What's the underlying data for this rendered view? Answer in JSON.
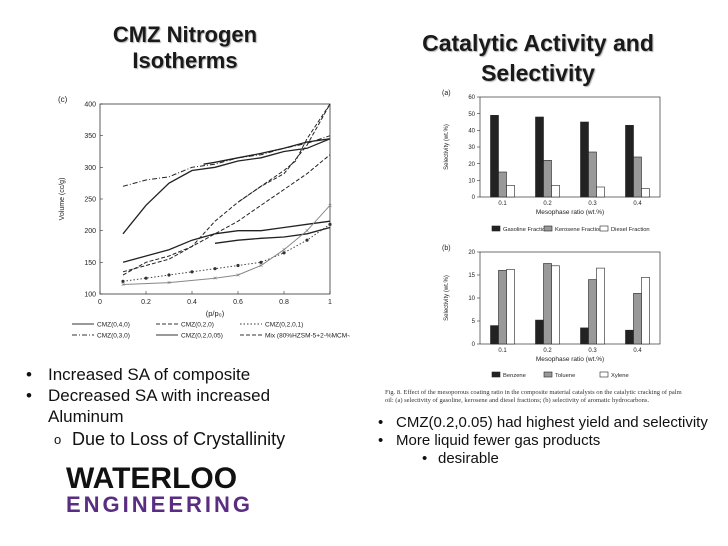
{
  "slide": {
    "left_title": [
      "CMZ Nitrogen",
      "Isotherms"
    ],
    "right_title": [
      "Catalytic Activity and",
      "Selectivity"
    ],
    "left_bullets": [
      "Increased SA of composite",
      "Decreased SA with increased Aluminum"
    ],
    "left_sub_bullet": "Due to Loss of Crystallinity",
    "right_bullets": [
      "CMZ(0.2,0.05) had highest yield and selectivity",
      "More liquid fewer gas products"
    ],
    "right_sub_bullet": "desirable",
    "caption": "Fig. 8. Effect of the mesoporous coating ratio in the composite material catalysts on the catalytic cracking of palm oil: (a) selectivity of gasoline, kerosene and diesel fractions; (b) selectivity of aromatic hydrocarbons.",
    "logo_line1": "WATERLOO",
    "logo_line2": "ENGINEERING",
    "colors": {
      "purple": "#5a2d82"
    }
  },
  "chart_data": [
    {
      "type": "line",
      "panel": "(c)",
      "xlabel": "(p/p₀)",
      "ylabel": "Volume (cc/g)",
      "xlim": [
        0,
        1
      ],
      "ylim": [
        100,
        400
      ],
      "xticks": [
        "0",
        "0.2",
        "0.4",
        "0.6",
        "0.8",
        "1"
      ],
      "yticks": [
        "100",
        "150",
        "200",
        "250",
        "300",
        "350",
        "400"
      ],
      "legend": [
        "CMZ(0,4,0)",
        "CMZ(0,2,0)",
        "CMZ(0,2,0,1)",
        "CMZ(0,3,0)",
        "CMZ(0,2,0,05)",
        "Mix (80%HZSM-5+2-%MCM-41)"
      ],
      "series": [
        {
          "name": "CMZ(0,4,0)",
          "style": "solid",
          "color": "#222222",
          "x": [
            0.1,
            0.2,
            0.3,
            0.4,
            0.5,
            0.6,
            0.7,
            0.8,
            0.9,
            1.0
          ],
          "y": [
            195,
            240,
            275,
            295,
            300,
            310,
            315,
            325,
            330,
            345
          ]
        },
        {
          "name": "CMZ(0,4,0)",
          "style": "solid",
          "color": "#222222",
          "x": [
            1.0,
            0.9,
            0.8,
            0.7,
            0.6,
            0.5,
            0.45
          ],
          "y": [
            345,
            340,
            330,
            322,
            315,
            308,
            305
          ]
        },
        {
          "name": "CMZ(0,3,0)",
          "style": "dashdot",
          "color": "#222222",
          "x": [
            0.1,
            0.2,
            0.3,
            0.4,
            0.5,
            0.6,
            0.7,
            0.8,
            0.9,
            1.0
          ],
          "y": [
            270,
            280,
            285,
            300,
            305,
            315,
            320,
            330,
            338,
            350
          ]
        },
        {
          "name": "CMZ(0,2,0)",
          "style": "dashed",
          "color": "#222222",
          "x": [
            0.1,
            0.2,
            0.3,
            0.4,
            0.5,
            0.6,
            0.7,
            0.8,
            0.9,
            1.0
          ],
          "y": [
            135,
            145,
            155,
            175,
            215,
            245,
            270,
            290,
            335,
            400
          ]
        },
        {
          "name": "CMZ(0,2,0)",
          "style": "dashed",
          "color": "#222222",
          "x": [
            1.0,
            0.9,
            0.85,
            0.8,
            0.7,
            0.6
          ],
          "y": [
            400,
            345,
            310,
            295,
            270,
            245
          ]
        },
        {
          "name": "Mix (80%HZSM-5+2-%MCM-41)",
          "style": "dashed",
          "color": "#222222",
          "x": [
            0.1,
            0.2,
            0.3,
            0.4,
            0.5,
            0.6,
            0.7,
            0.8,
            0.9,
            1.0
          ],
          "y": [
            130,
            150,
            160,
            175,
            195,
            215,
            240,
            265,
            290,
            320
          ]
        },
        {
          "name": "CMZ(0,2,0,05)",
          "style": "solid",
          "color": "#222222",
          "x": [
            0.1,
            0.2,
            0.3,
            0.4,
            0.5,
            0.6,
            0.7,
            0.8,
            0.9,
            1.0
          ],
          "y": [
            150,
            160,
            170,
            185,
            195,
            200,
            200,
            205,
            210,
            215
          ]
        },
        {
          "name": "CMZ(0,2,0,05)",
          "style": "solid",
          "color": "#222222",
          "x": [
            0.5,
            0.6,
            0.7,
            0.8,
            0.9,
            1.0
          ],
          "y": [
            180,
            185,
            188,
            190,
            195,
            205
          ]
        },
        {
          "name": "CMZ(0,2,0,1)",
          "style": "dotted-marker",
          "color": "#444444",
          "x": [
            0.1,
            0.2,
            0.3,
            0.4,
            0.5,
            0.6,
            0.7,
            0.8,
            0.9,
            1.0
          ],
          "y": [
            120,
            125,
            130,
            135,
            140,
            145,
            150,
            165,
            185,
            210
          ]
        },
        {
          "name": "CMZ(0,2,0,1)",
          "style": "gray",
          "color": "#888888",
          "x": [
            0.1,
            0.3,
            0.5,
            0.6,
            0.7,
            0.8,
            0.9,
            1.0
          ],
          "y": [
            115,
            118,
            125,
            130,
            145,
            170,
            200,
            240
          ]
        }
      ]
    },
    {
      "type": "bar",
      "panel": "(a)",
      "xlabel": "Mesophase ratio (wt.%)",
      "ylabel": "Selectivity (wt.%)",
      "ylim": [
        0,
        60
      ],
      "yticks": [
        "0",
        "10",
        "20",
        "30",
        "40",
        "50",
        "60"
      ],
      "categories": [
        "0.1",
        "0.2",
        "0.3",
        "0.4"
      ],
      "series": [
        {
          "name": "Gasoline Fraction",
          "color": "#222222",
          "values": [
            49,
            48,
            45,
            43
          ]
        },
        {
          "name": "Kerosene Fraction",
          "color": "#999999",
          "values": [
            15,
            22,
            27,
            24
          ]
        },
        {
          "name": "Diesel Fraction",
          "color": "#ffffff",
          "values": [
            7,
            7,
            6,
            5
          ]
        }
      ]
    },
    {
      "type": "bar",
      "panel": "(b)",
      "xlabel": "Mesophase ratio (wt.%)",
      "ylabel": "Selectivity (wt.%)",
      "ylim": [
        0,
        20
      ],
      "yticks": [
        "0",
        "5",
        "10",
        "15",
        "20"
      ],
      "categories": [
        "0.1",
        "0.2",
        "0.3",
        "0.4"
      ],
      "series": [
        {
          "name": "Benzene",
          "color": "#222222",
          "values": [
            4,
            5.2,
            3.5,
            3
          ]
        },
        {
          "name": "Toluene",
          "color": "#999999",
          "values": [
            16,
            17.5,
            14,
            11
          ]
        },
        {
          "name": "Xylene",
          "color": "#ffffff",
          "values": [
            16.2,
            17,
            16.5,
            14.5
          ]
        }
      ]
    }
  ]
}
